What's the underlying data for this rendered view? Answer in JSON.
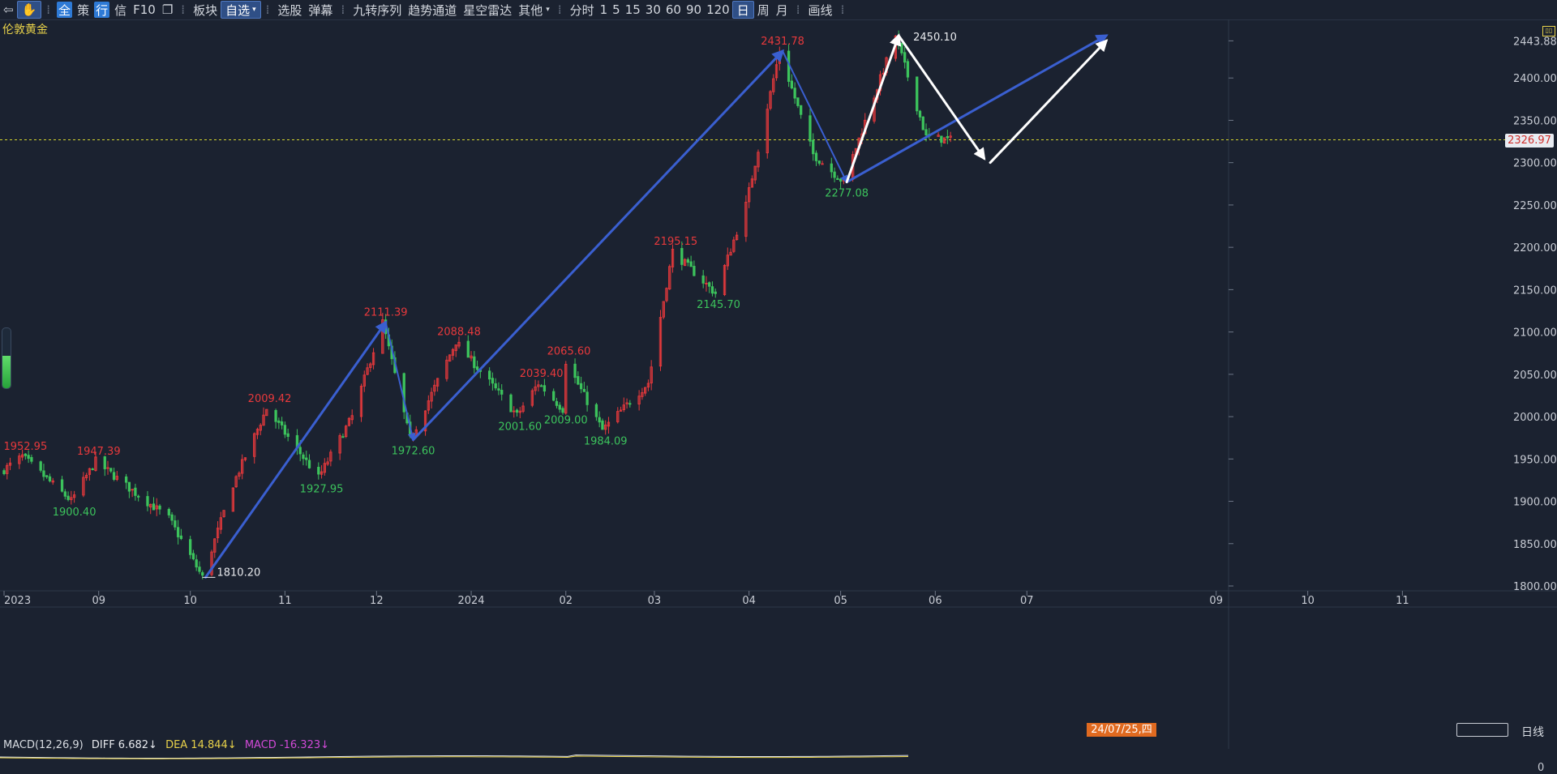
{
  "toolbar": {
    "items": [
      "全",
      "策",
      "行",
      "信",
      "F10",
      "板块",
      "自选",
      "选股",
      "弹幕",
      "九转序列",
      "趋势通道",
      "星空雷达",
      "其他",
      "分时",
      "1",
      "5",
      "15",
      "30",
      "60",
      "90",
      "120",
      "日",
      "周",
      "月",
      "画线"
    ]
  },
  "instrument_name": "伦敦黄金",
  "current_price": "2326.97",
  "cursor_date": "24/07/25,四",
  "period_label": "日线",
  "macd": {
    "title": "MACD(12,26,9)",
    "diff": "DIFF 6.682↓",
    "dea": "DEA 14.844↓",
    "macd": "MACD -16.323↓",
    "zero_label": "0"
  },
  "colors": {
    "background": "#1b2230",
    "up": "#e8393c",
    "down": "#3cc35c",
    "trend": "#3a5fd0",
    "projection": "#ffffff",
    "price_line": "#d6d62e"
  },
  "chart_data": {
    "type": "candlestick",
    "instrument": "伦敦黄金",
    "yaxis": {
      "ticks": [
        2443.88,
        2400.0,
        2350.0,
        2300.0,
        2250.0,
        2200.0,
        2150.0,
        2100.0,
        2050.0,
        2000.0,
        1950.0,
        1900.0,
        1850.0,
        1800.0
      ],
      "tick_labels": [
        "2443.88",
        "2400.00",
        "2350.00",
        "2300.00",
        "2250.00",
        "2200.00",
        "2150.00",
        "2100.00",
        "2050.00",
        "2000.00",
        "1950.00",
        "1900.00",
        "1850.00",
        "1800.00"
      ],
      "range": [
        1800,
        2450
      ]
    },
    "xaxis": {
      "labels": [
        "2023",
        "09",
        "10",
        "11",
        "12",
        "2024",
        "02",
        "03",
        "04",
        "05",
        "06",
        "07",
        "09",
        "10",
        "11"
      ],
      "label_dates": [
        "2023-08-01",
        "2023-09-01",
        "2023-10-01",
        "2023-11-01",
        "2023-12-01",
        "2024-01-01",
        "2024-02-01",
        "2024-03-01",
        "2024-04-01",
        "2024-05-01",
        "2024-06-01",
        "2024-07-01",
        "2024-09-01",
        "2024-10-01",
        "2024-11-01"
      ]
    },
    "current_price": 2326.97,
    "annotations": [
      {
        "label": "1952.95",
        "date": "2023-08-08",
        "price": 1952.95,
        "kind": "high"
      },
      {
        "label": "1900.40",
        "date": "2023-08-24",
        "price": 1900.4,
        "kind": "low"
      },
      {
        "label": "1947.39",
        "date": "2023-09-01",
        "price": 1947.39,
        "kind": "high"
      },
      {
        "label": "1810.20",
        "date": "2023-10-06",
        "price": 1810.2,
        "kind": "low_white"
      },
      {
        "label": "2009.42",
        "date": "2023-10-27",
        "price": 2009.42,
        "kind": "high"
      },
      {
        "label": "1927.95",
        "date": "2023-11-13",
        "price": 1927.95,
        "kind": "low"
      },
      {
        "label": "2111.39",
        "date": "2023-12-04",
        "price": 2111.39,
        "kind": "high"
      },
      {
        "label": "1972.60",
        "date": "2023-12-13",
        "price": 1972.6,
        "kind": "low"
      },
      {
        "label": "2088.48",
        "date": "2023-12-28",
        "price": 2088.48,
        "kind": "high"
      },
      {
        "label": "2001.60",
        "date": "2024-01-17",
        "price": 2001.6,
        "kind": "low"
      },
      {
        "label": "2039.40",
        "date": "2024-01-24",
        "price": 2039.4,
        "kind": "high"
      },
      {
        "label": "2009.00",
        "date": "2024-02-01",
        "price": 2009.0,
        "kind": "low"
      },
      {
        "label": "2065.60",
        "date": "2024-02-02",
        "price": 2065.6,
        "kind": "high"
      },
      {
        "label": "1984.09",
        "date": "2024-02-14",
        "price": 1984.09,
        "kind": "low"
      },
      {
        "label": "2195.15",
        "date": "2024-03-08",
        "price": 2195.15,
        "kind": "high"
      },
      {
        "label": "2145.70",
        "date": "2024-03-22",
        "price": 2145.7,
        "kind": "low"
      },
      {
        "label": "2431.78",
        "date": "2024-04-12",
        "price": 2431.78,
        "kind": "high"
      },
      {
        "label": "2277.08",
        "date": "2024-05-03",
        "price": 2277.08,
        "kind": "low"
      },
      {
        "label": "2450.10",
        "date": "2024-05-20",
        "price": 2450.1,
        "kind": "high_white"
      }
    ],
    "pivots": [
      {
        "date": "2023-08-01",
        "price": 1935
      },
      {
        "date": "2023-08-08",
        "price": 1952.95
      },
      {
        "date": "2023-08-24",
        "price": 1900.4
      },
      {
        "date": "2023-09-01",
        "price": 1947.39
      },
      {
        "date": "2023-09-14",
        "price": 1910
      },
      {
        "date": "2023-09-25",
        "price": 1880
      },
      {
        "date": "2023-10-06",
        "price": 1810.2
      },
      {
        "date": "2023-10-16",
        "price": 1920
      },
      {
        "date": "2023-10-27",
        "price": 2009.42
      },
      {
        "date": "2023-11-13",
        "price": 1927.95
      },
      {
        "date": "2023-11-24",
        "price": 2000
      },
      {
        "date": "2023-12-04",
        "price": 2111.39
      },
      {
        "date": "2023-12-13",
        "price": 1972.6
      },
      {
        "date": "2023-12-28",
        "price": 2088.48
      },
      {
        "date": "2024-01-17",
        "price": 2001.6
      },
      {
        "date": "2024-01-24",
        "price": 2039.4
      },
      {
        "date": "2024-02-01",
        "price": 2009.0
      },
      {
        "date": "2024-02-02",
        "price": 2065.6
      },
      {
        "date": "2024-02-14",
        "price": 1984.09
      },
      {
        "date": "2024-02-29",
        "price": 2040
      },
      {
        "date": "2024-03-08",
        "price": 2195.15
      },
      {
        "date": "2024-03-22",
        "price": 2145.7
      },
      {
        "date": "2024-04-01",
        "price": 2250
      },
      {
        "date": "2024-04-12",
        "price": 2431.78
      },
      {
        "date": "2024-04-23",
        "price": 2310
      },
      {
        "date": "2024-05-03",
        "price": 2277.08
      },
      {
        "date": "2024-05-20",
        "price": 2450.1
      },
      {
        "date": "2024-05-30",
        "price": 2330
      },
      {
        "date": "2024-06-07",
        "price": 2326.97
      }
    ],
    "trend_lines": [
      {
        "from": {
          "date": "2023-10-06",
          "price": 1810.2
        },
        "to": {
          "date": "2023-12-04",
          "price": 2111.39
        },
        "color": "#3a5fd0",
        "arrow": true,
        "width": 3
      },
      {
        "from": {
          "date": "2023-12-04",
          "price": 2111.39
        },
        "to": {
          "date": "2023-12-13",
          "price": 1972.6
        },
        "color": "#3a5fd0",
        "arrow": true,
        "width": 2
      },
      {
        "from": {
          "date": "2023-12-13",
          "price": 1972.6
        },
        "to": {
          "date": "2024-04-12",
          "price": 2431.78
        },
        "color": "#3a5fd0",
        "arrow": true,
        "width": 3
      },
      {
        "from": {
          "date": "2024-04-12",
          "price": 2431.78
        },
        "to": {
          "date": "2024-05-03",
          "price": 2277.08
        },
        "color": "#3a5fd0",
        "arrow": true,
        "width": 2
      },
      {
        "from": {
          "date": "2024-05-03",
          "price": 2277.08
        },
        "to": {
          "date": "2024-07-27",
          "price": 2450.1
        },
        "color": "#3a5fd0",
        "arrow": true,
        "width": 3
      },
      {
        "from": {
          "date": "2024-05-03",
          "price": 2277.08
        },
        "to": {
          "date": "2024-05-20",
          "price": 2450.1
        },
        "color": "#ffffff",
        "arrow": true,
        "width": 3
      },
      {
        "from": {
          "date": "2024-05-20",
          "price": 2450.1
        },
        "to": {
          "date": "2024-06-17",
          "price": 2305
        },
        "color": "#ffffff",
        "arrow": true,
        "width": 3
      },
      {
        "from": {
          "date": "2024-06-19",
          "price": 2300
        },
        "to": {
          "date": "2024-07-27",
          "price": 2443.88
        },
        "color": "#ffffff",
        "arrow": true,
        "width": 3
      }
    ]
  }
}
